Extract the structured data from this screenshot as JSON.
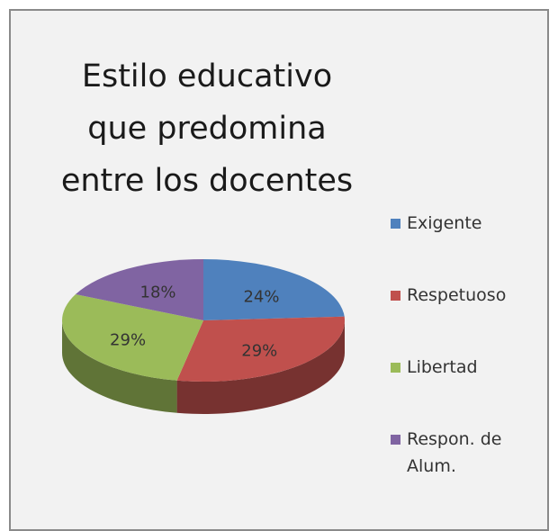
{
  "chart_data": {
    "type": "pie",
    "title": "Estilo educativo que predomina entre los docentes",
    "categories": [
      "Exigente",
      "Respetuoso",
      "Libertad",
      "Respon. de Alum."
    ],
    "values": [
      24,
      29,
      29,
      18
    ],
    "value_labels": [
      "24%",
      "29%",
      "29%",
      "18%"
    ],
    "colors": [
      "#4f81bd",
      "#c0504d",
      "#9bbb59",
      "#8064a2"
    ],
    "legend": "right"
  }
}
